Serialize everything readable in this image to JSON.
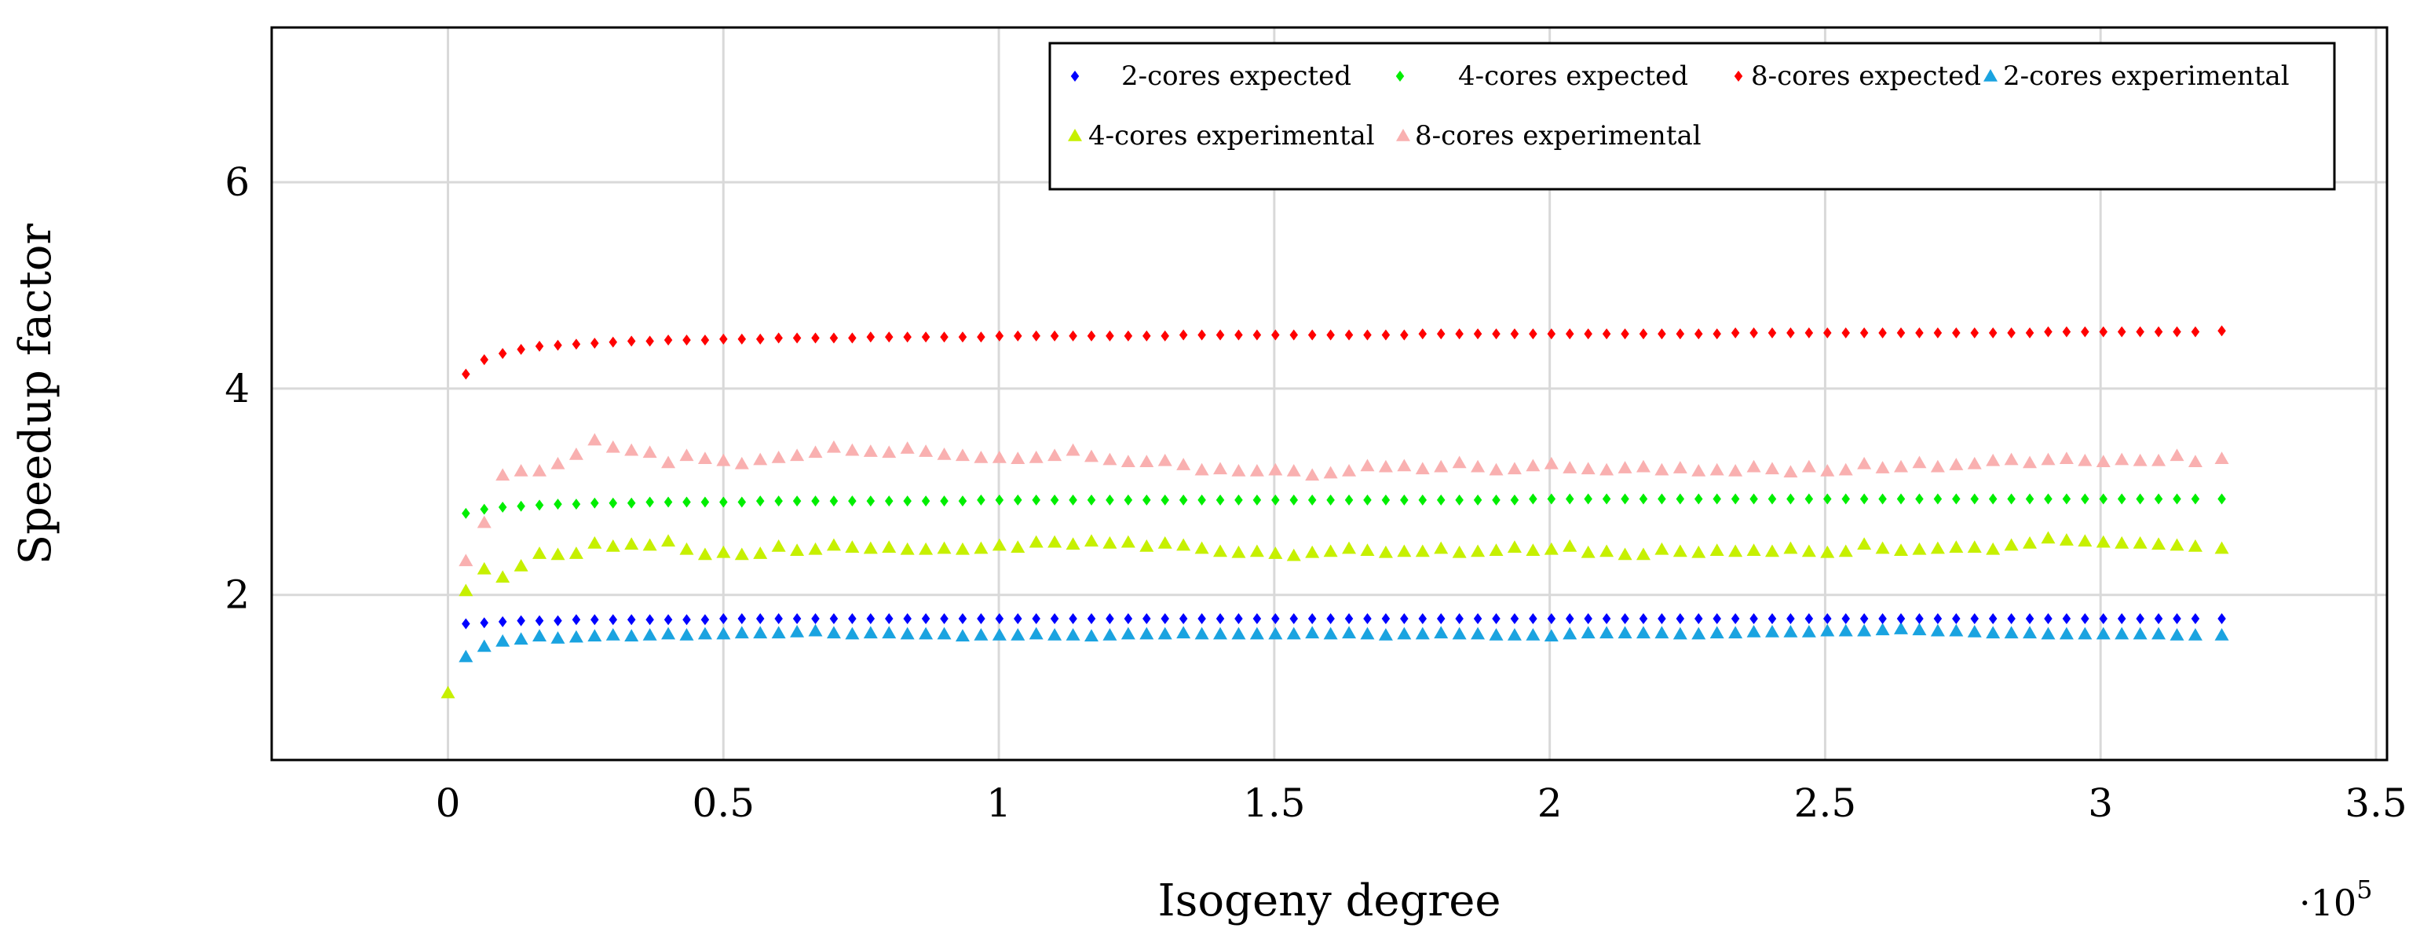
{
  "chart_data": {
    "type": "scatter",
    "title": "",
    "xlabel": "Isogeny degree",
    "ylabel": "Speedup factor",
    "x_scale_label": {
      "base": "·10",
      "exponent": "5"
    },
    "xlim": [
      -0.32,
      3.52
    ],
    "ylim": [
      0.4,
      7.5
    ],
    "x_ticks": [
      0,
      0.5,
      1,
      1.5,
      2,
      2.5,
      3,
      3.5
    ],
    "x_tick_labels": [
      "0",
      "0.5",
      "1",
      "1.5",
      "2",
      "2.5",
      "3",
      "3.5"
    ],
    "y_ticks": [
      2,
      4,
      6
    ],
    "y_tick_labels": [
      "2",
      "4",
      "6"
    ],
    "grid": true,
    "legend_position": "top-right",
    "x_start": 0.0325,
    "x_step": 0.0334,
    "x_last": 3.22,
    "series": [
      {
        "name": "2-cores expected",
        "marker": "diamond",
        "color": "#0000ff",
        "values": [
          1.72,
          1.73,
          1.74,
          1.75,
          1.75,
          1.75,
          1.76,
          1.76,
          1.76,
          1.76,
          1.76,
          1.76,
          1.76,
          1.76,
          1.77,
          1.77,
          1.77,
          1.77,
          1.77,
          1.77,
          1.77,
          1.77,
          1.77,
          1.77,
          1.77,
          1.77,
          1.77,
          1.77,
          1.77,
          1.77,
          1.77,
          1.77,
          1.77,
          1.77,
          1.77,
          1.77,
          1.77,
          1.77,
          1.77,
          1.77,
          1.77,
          1.77,
          1.77,
          1.77,
          1.77,
          1.77,
          1.77,
          1.77,
          1.77,
          1.77,
          1.77,
          1.77,
          1.77,
          1.77,
          1.77,
          1.77,
          1.77,
          1.77,
          1.77,
          1.77,
          1.77,
          1.77,
          1.77,
          1.77,
          1.77,
          1.77,
          1.77,
          1.77,
          1.77,
          1.77,
          1.77,
          1.77,
          1.77,
          1.77,
          1.77,
          1.77,
          1.77,
          1.77,
          1.77,
          1.77,
          1.77,
          1.77,
          1.77,
          1.77,
          1.77,
          1.77,
          1.77,
          1.77,
          1.77,
          1.77,
          1.77,
          1.77,
          1.77,
          1.77,
          1.77,
          1.77
        ]
      },
      {
        "name": "4-cores expected",
        "marker": "diamond",
        "color": "#00ee00",
        "values": [
          2.79,
          2.83,
          2.85,
          2.86,
          2.87,
          2.88,
          2.88,
          2.89,
          2.89,
          2.89,
          2.9,
          2.9,
          2.9,
          2.9,
          2.9,
          2.9,
          2.91,
          2.91,
          2.91,
          2.91,
          2.91,
          2.91,
          2.91,
          2.91,
          2.91,
          2.91,
          2.91,
          2.91,
          2.92,
          2.92,
          2.92,
          2.92,
          2.92,
          2.92,
          2.92,
          2.92,
          2.92,
          2.92,
          2.92,
          2.92,
          2.92,
          2.92,
          2.92,
          2.92,
          2.92,
          2.92,
          2.92,
          2.92,
          2.92,
          2.92,
          2.92,
          2.92,
          2.92,
          2.92,
          2.92,
          2.92,
          2.92,
          2.92,
          2.93,
          2.93,
          2.93,
          2.93,
          2.93,
          2.93,
          2.93,
          2.93,
          2.93,
          2.93,
          2.93,
          2.93,
          2.93,
          2.93,
          2.93,
          2.93,
          2.93,
          2.93,
          2.93,
          2.93,
          2.93,
          2.93,
          2.93,
          2.93,
          2.93,
          2.93,
          2.93,
          2.93,
          2.93,
          2.93,
          2.93,
          2.93,
          2.93,
          2.93,
          2.93,
          2.93,
          2.93,
          2.93
        ]
      },
      {
        "name": "8-cores expected",
        "marker": "diamond",
        "color": "#ff0000",
        "values": [
          4.14,
          4.28,
          4.34,
          4.38,
          4.41,
          4.42,
          4.43,
          4.44,
          4.45,
          4.46,
          4.46,
          4.47,
          4.47,
          4.47,
          4.48,
          4.48,
          4.48,
          4.49,
          4.49,
          4.49,
          4.49,
          4.49,
          4.5,
          4.5,
          4.5,
          4.5,
          4.5,
          4.5,
          4.5,
          4.51,
          4.51,
          4.51,
          4.51,
          4.51,
          4.51,
          4.51,
          4.51,
          4.51,
          4.51,
          4.52,
          4.52,
          4.52,
          4.52,
          4.52,
          4.52,
          4.52,
          4.52,
          4.52,
          4.52,
          4.52,
          4.52,
          4.52,
          4.53,
          4.53,
          4.53,
          4.53,
          4.53,
          4.53,
          4.53,
          4.53,
          4.53,
          4.53,
          4.53,
          4.53,
          4.53,
          4.53,
          4.53,
          4.53,
          4.53,
          4.54,
          4.54,
          4.54,
          4.54,
          4.54,
          4.54,
          4.54,
          4.54,
          4.54,
          4.54,
          4.54,
          4.54,
          4.54,
          4.54,
          4.54,
          4.54,
          4.54,
          4.55,
          4.55,
          4.55,
          4.55,
          4.55,
          4.55,
          4.55,
          4.55,
          4.55,
          4.56
        ]
      },
      {
        "name": "2-cores experimental",
        "marker": "triangle",
        "color": "#1aa3e0",
        "values": [
          1.4,
          1.5,
          1.55,
          1.57,
          1.6,
          1.58,
          1.59,
          1.6,
          1.61,
          1.6,
          1.61,
          1.62,
          1.61,
          1.62,
          1.62,
          1.63,
          1.63,
          1.63,
          1.64,
          1.65,
          1.63,
          1.62,
          1.63,
          1.63,
          1.62,
          1.62,
          1.62,
          1.6,
          1.61,
          1.61,
          1.61,
          1.62,
          1.61,
          1.61,
          1.6,
          1.61,
          1.62,
          1.62,
          1.62,
          1.63,
          1.62,
          1.62,
          1.62,
          1.62,
          1.62,
          1.62,
          1.63,
          1.62,
          1.63,
          1.62,
          1.61,
          1.62,
          1.62,
          1.63,
          1.62,
          1.62,
          1.61,
          1.61,
          1.61,
          1.6,
          1.62,
          1.63,
          1.63,
          1.63,
          1.63,
          1.63,
          1.62,
          1.62,
          1.63,
          1.63,
          1.64,
          1.64,
          1.64,
          1.64,
          1.65,
          1.65,
          1.65,
          1.66,
          1.67,
          1.66,
          1.65,
          1.65,
          1.64,
          1.63,
          1.63,
          1.63,
          1.62,
          1.62,
          1.62,
          1.62,
          1.62,
          1.62,
          1.62,
          1.61,
          1.61,
          1.61
        ]
      },
      {
        "name": "4-cores experimental",
        "marker": "triangle",
        "color": "#c6f000",
        "first_point": [
          0,
          1.05
        ],
        "values": [
          2.04,
          2.25,
          2.17,
          2.28,
          2.4,
          2.39,
          2.4,
          2.5,
          2.47,
          2.49,
          2.48,
          2.52,
          2.44,
          2.39,
          2.41,
          2.39,
          2.4,
          2.47,
          2.43,
          2.44,
          2.48,
          2.46,
          2.45,
          2.46,
          2.44,
          2.44,
          2.45,
          2.44,
          2.45,
          2.48,
          2.46,
          2.51,
          2.51,
          2.49,
          2.52,
          2.5,
          2.51,
          2.47,
          2.5,
          2.48,
          2.45,
          2.42,
          2.41,
          2.42,
          2.4,
          2.38,
          2.41,
          2.42,
          2.45,
          2.43,
          2.41,
          2.42,
          2.42,
          2.45,
          2.41,
          2.42,
          2.43,
          2.46,
          2.43,
          2.44,
          2.47,
          2.41,
          2.42,
          2.39,
          2.39,
          2.44,
          2.42,
          2.41,
          2.43,
          2.42,
          2.43,
          2.42,
          2.45,
          2.42,
          2.41,
          2.42,
          2.49,
          2.45,
          2.43,
          2.44,
          2.45,
          2.46,
          2.46,
          2.44,
          2.48,
          2.5,
          2.55,
          2.53,
          2.52,
          2.51,
          2.5,
          2.5,
          2.49,
          2.48,
          2.47,
          2.45
        ]
      },
      {
        "name": "8-cores experimental",
        "marker": "triangle",
        "color": "#f9b0b0",
        "values": [
          2.33,
          2.7,
          3.16,
          3.2,
          3.2,
          3.27,
          3.36,
          3.5,
          3.43,
          3.4,
          3.38,
          3.28,
          3.35,
          3.32,
          3.3,
          3.27,
          3.31,
          3.33,
          3.35,
          3.38,
          3.43,
          3.4,
          3.39,
          3.38,
          3.42,
          3.39,
          3.36,
          3.35,
          3.33,
          3.33,
          3.32,
          3.33,
          3.35,
          3.4,
          3.34,
          3.31,
          3.29,
          3.29,
          3.3,
          3.26,
          3.21,
          3.22,
          3.2,
          3.2,
          3.21,
          3.2,
          3.16,
          3.18,
          3.2,
          3.25,
          3.24,
          3.25,
          3.22,
          3.24,
          3.28,
          3.24,
          3.21,
          3.22,
          3.25,
          3.27,
          3.23,
          3.22,
          3.21,
          3.23,
          3.24,
          3.21,
          3.23,
          3.2,
          3.21,
          3.2,
          3.24,
          3.22,
          3.19,
          3.24,
          3.2,
          3.21,
          3.27,
          3.23,
          3.24,
          3.28,
          3.24,
          3.26,
          3.27,
          3.3,
          3.31,
          3.28,
          3.31,
          3.32,
          3.3,
          3.29,
          3.31,
          3.3,
          3.3,
          3.35,
          3.29,
          3.32
        ]
      }
    ]
  }
}
